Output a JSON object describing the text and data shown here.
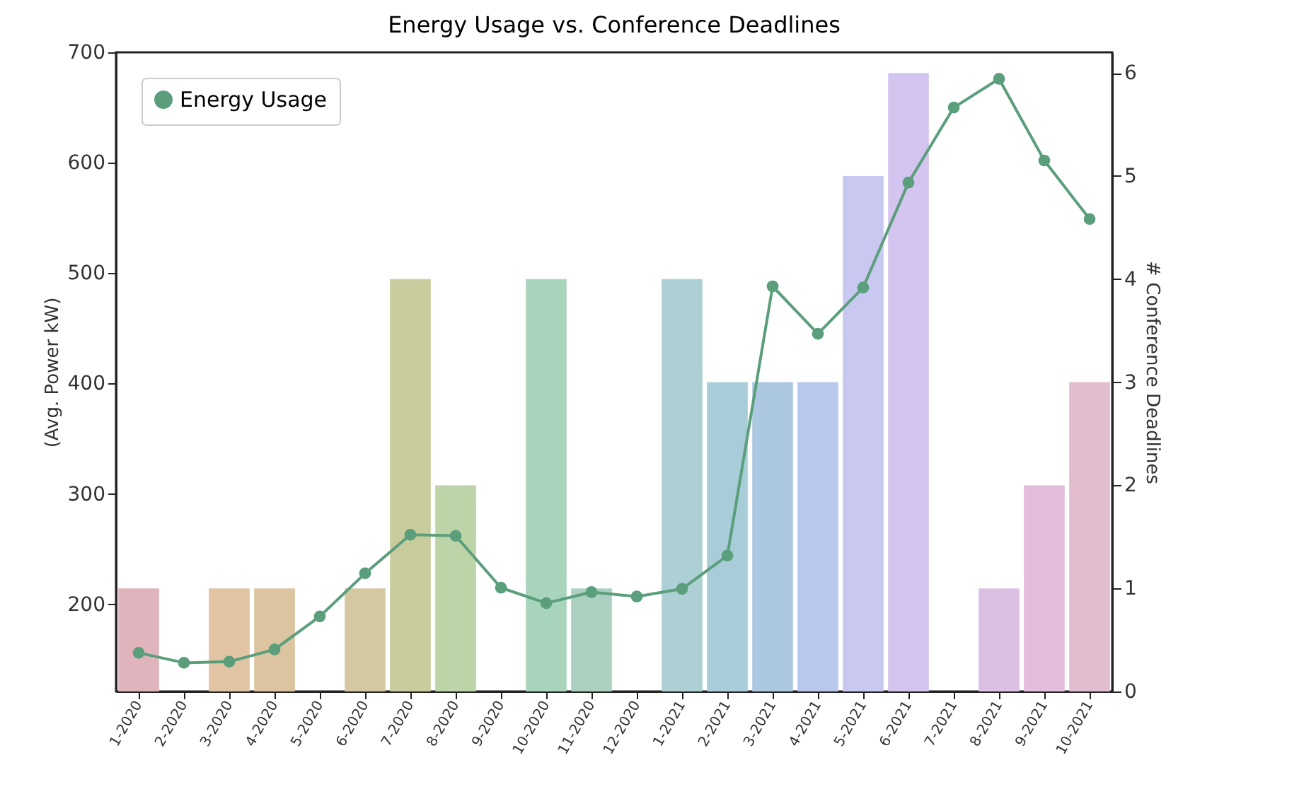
{
  "chart_data": {
    "type": "bar",
    "title": "Energy Usage vs. Conference Deadlines",
    "categories": [
      "1-2020",
      "2-2020",
      "3-2020",
      "4-2020",
      "5-2020",
      "6-2020",
      "7-2020",
      "8-2020",
      "9-2020",
      "10-2020",
      "11-2020",
      "12-2020",
      "1-2021",
      "2-2021",
      "3-2021",
      "4-2021",
      "5-2021",
      "6-2021",
      "7-2021",
      "8-2021",
      "9-2021",
      "10-2021"
    ],
    "ylabel": "(Avg. Power kW)",
    "y2label": "# Conference Deadlines",
    "series": [
      {
        "axis": "y2",
        "colors": [
          "#e0b4bc",
          "#e0b8b0",
          "#e0c4a4",
          "#dcc4a0",
          "#d8c8a0",
          "#d4c8a0",
          "#c8cc9c",
          "#bcd4a8",
          "#b4d4b0",
          "#a8d4bc",
          "#acd0c0",
          "#acd0c8",
          "#acd0d4",
          "#a8ccd8",
          "#acc8e0",
          "#b8c8ec",
          "#c8c8f0",
          "#d4c4f0",
          "#d8c0ec",
          "#dcc0e4",
          "#e4bcdc",
          "#e4bcd0"
        ],
        "values": [
          1,
          0,
          1,
          1,
          0,
          1,
          4,
          2,
          0,
          4,
          1,
          0,
          4,
          3,
          3,
          3,
          5,
          6,
          0,
          1,
          2,
          3
        ]
      },
      {
        "type": "line",
        "name": "Energy Usage",
        "color": "#5a9e7c",
        "values": [
          156,
          147,
          148,
          159,
          189,
          228,
          263,
          262,
          215,
          201,
          211,
          207,
          214,
          244,
          488,
          445,
          487,
          582,
          650,
          676,
          602,
          549
        ]
      }
    ],
    "ylim": [
      121,
      700
    ],
    "yticks": [
      200,
      300,
      400,
      500,
      600,
      700
    ],
    "y2lim": [
      0,
      6.2
    ],
    "y2ticks": [
      0,
      1,
      2,
      3,
      4,
      5,
      6
    ],
    "legend": "top left",
    "marker": "circle",
    "grid": false
  }
}
